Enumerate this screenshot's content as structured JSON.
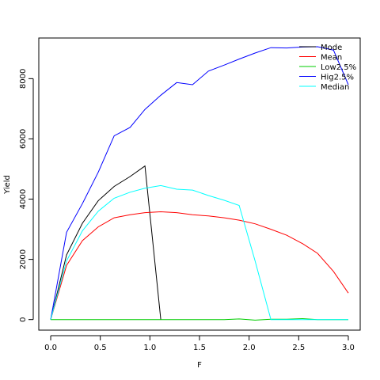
{
  "chart_data": {
    "type": "line",
    "title": "",
    "xlabel": "F",
    "ylabel": "Yield",
    "xlim": [
      -0.12,
      3.12
    ],
    "ylim": [
      -350,
      9350
    ],
    "xticks": [
      "0.0",
      "0.5",
      "1.0",
      "1.5",
      "2.0",
      "2.5",
      "3.0"
    ],
    "xtick_values": [
      0,
      0.5,
      1.0,
      1.5,
      2.0,
      2.5,
      3.0
    ],
    "yticks": [
      "0",
      "2000",
      "4000",
      "6000",
      "8000"
    ],
    "ytick_values": [
      0,
      2000,
      4000,
      6000,
      8000
    ],
    "grid": false,
    "legend_position": "top-right",
    "legend_border": false,
    "series": [
      {
        "name": "Mode",
        "color": "#000000",
        "x": [
          0,
          0.16,
          0.32,
          0.48,
          0.64,
          0.8,
          0.95,
          1.11
        ],
        "y": [
          0,
          2150,
          3200,
          3950,
          4420,
          4750,
          5100,
          0
        ]
      },
      {
        "name": "Mean",
        "color": "#ff0000",
        "x": [
          0,
          0.16,
          0.32,
          0.48,
          0.64,
          0.8,
          0.95,
          1.11,
          1.27,
          1.43,
          1.59,
          1.75,
          1.9,
          2.06,
          2.22,
          2.38,
          2.54,
          2.69,
          2.85,
          3.0
        ],
        "y": [
          0,
          1800,
          2620,
          3080,
          3380,
          3480,
          3550,
          3580,
          3550,
          3480,
          3440,
          3380,
          3300,
          3180,
          3000,
          2800,
          2520,
          2200,
          1600,
          880
        ]
      },
      {
        "name": "Low2.5%",
        "color": "#00cc00",
        "x": [
          0,
          0.16,
          0.32,
          0.48,
          0.64,
          0.8,
          0.95,
          1.11,
          1.27,
          1.43,
          1.59,
          1.75,
          1.9,
          2.06,
          2.22,
          2.38,
          2.54,
          2.69,
          2.85,
          3.0
        ],
        "y": [
          0,
          0,
          0,
          0,
          0,
          0,
          0,
          0,
          0,
          0,
          0,
          0,
          20,
          -20,
          10,
          10,
          30,
          0,
          0,
          0
        ]
      },
      {
        "name": "Hig2.5%",
        "color": "#0000ff",
        "x": [
          0,
          0.16,
          0.32,
          0.48,
          0.64,
          0.8,
          0.95,
          1.11,
          1.27,
          1.43,
          1.59,
          1.75,
          1.9,
          2.06,
          2.22,
          2.38,
          2.54,
          2.69,
          2.85,
          3.0
        ],
        "y": [
          0,
          2900,
          3850,
          4900,
          6100,
          6380,
          6980,
          7450,
          7870,
          7800,
          8250,
          8450,
          8650,
          8850,
          9030,
          9020,
          9050,
          9060,
          8950,
          7800
        ]
      },
      {
        "name": "Median",
        "color": "#00ffff",
        "x": [
          0,
          0.16,
          0.32,
          0.48,
          0.64,
          0.8,
          0.95,
          1.11,
          1.27,
          1.43,
          1.59,
          1.75,
          1.9,
          2.06,
          2.22,
          2.38,
          2.54,
          2.69,
          2.85,
          3.0
        ],
        "y": [
          0,
          1950,
          2950,
          3600,
          4030,
          4230,
          4360,
          4450,
          4330,
          4300,
          4120,
          3960,
          3790,
          1950,
          0,
          0,
          0,
          0,
          0,
          0
        ]
      }
    ]
  }
}
